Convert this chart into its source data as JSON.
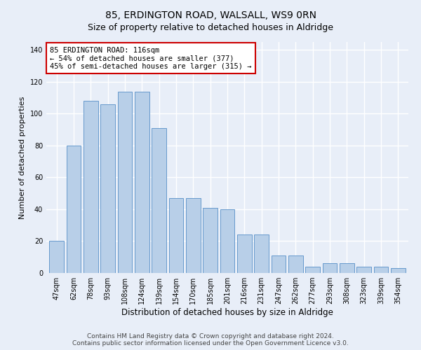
{
  "title": "85, ERDINGTON ROAD, WALSALL, WS9 0RN",
  "subtitle": "Size of property relative to detached houses in Aldridge",
  "xlabel": "Distribution of detached houses by size in Aldridge",
  "ylabel": "Number of detached properties",
  "categories": [
    "47sqm",
    "62sqm",
    "78sqm",
    "93sqm",
    "108sqm",
    "124sqm",
    "139sqm",
    "154sqm",
    "170sqm",
    "185sqm",
    "201sqm",
    "216sqm",
    "231sqm",
    "247sqm",
    "262sqm",
    "277sqm",
    "293sqm",
    "308sqm",
    "323sqm",
    "339sqm",
    "354sqm"
  ],
  "values": [
    20,
    80,
    108,
    106,
    114,
    114,
    91,
    47,
    47,
    41,
    40,
    24,
    24,
    11,
    11,
    4,
    6,
    6,
    4,
    4,
    3
  ],
  "bar_color": "#b8cfe8",
  "bar_edge_color": "#6699cc",
  "ylim": [
    0,
    145
  ],
  "yticks": [
    0,
    20,
    40,
    60,
    80,
    100,
    120,
    140
  ],
  "annotation_line1": "85 ERDINGTON ROAD: 116sqm",
  "annotation_line2": "← 54% of detached houses are smaller (377)",
  "annotation_line3": "45% of semi-detached houses are larger (315) →",
  "annotation_box_facecolor": "#ffffff",
  "annotation_box_edgecolor": "#cc0000",
  "footer_text": "Contains HM Land Registry data © Crown copyright and database right 2024.\nContains public sector information licensed under the Open Government Licence v3.0.",
  "background_color": "#e8eef8",
  "plot_background_color": "#e8eef8",
  "grid_color": "#ffffff",
  "title_fontsize": 10,
  "xlabel_fontsize": 8.5,
  "ylabel_fontsize": 8,
  "tick_fontsize": 7,
  "annotation_fontsize": 7.5,
  "footer_fontsize": 6.5
}
